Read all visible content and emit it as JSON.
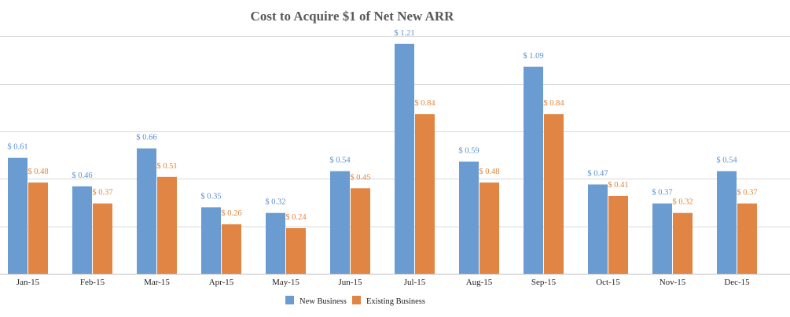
{
  "chart_data": {
    "type": "bar",
    "title": "Cost to Acquire $1 of Net New ARR",
    "xlabel": "",
    "ylabel": "",
    "ylim": [
      0,
      1.4
    ],
    "grid": true,
    "legend_position": "bottom",
    "label_prefix": "$ ",
    "categories": [
      "Jan-15",
      "Feb-15",
      "Mar-15",
      "Apr-15",
      "May-15",
      "Jun-15",
      "Jul-15",
      "Aug-15",
      "Sep-15",
      "Oct-15",
      "Nov-15",
      "Dec-15"
    ],
    "series": [
      {
        "name": "New Business",
        "color": "#6a9bd1",
        "label_color": "#5b8fcf",
        "values": [
          0.61,
          0.46,
          0.66,
          0.35,
          0.32,
          0.54,
          1.21,
          0.59,
          1.09,
          0.47,
          0.37,
          0.54
        ]
      },
      {
        "name": "Existing Business",
        "color": "#e08543",
        "label_color": "#e0843e",
        "values": [
          0.48,
          0.37,
          0.51,
          0.26,
          0.24,
          0.45,
          0.84,
          0.48,
          0.84,
          0.41,
          0.32,
          0.37
        ]
      }
    ]
  }
}
